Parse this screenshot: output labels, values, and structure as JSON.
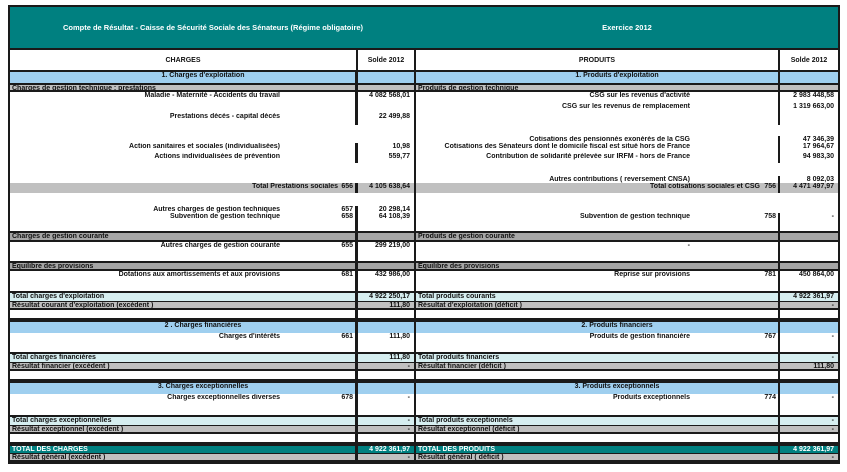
{
  "header": {
    "title_left": "Compte de Résultat - Caisse de Sécurité Sociale des Sénateurs (Régime obligatoire)",
    "title_right": "Exercice 2012"
  },
  "columns": {
    "left": "CHARGES",
    "right": "PRODUITS",
    "left_value": "Solde 2012",
    "right_value": "Solde 2012"
  },
  "colors": {
    "teal": "#008080",
    "section_blue": "#9fcfef",
    "gray": "#c0c0c0",
    "total_cyan": "#d6eef0"
  },
  "rows": [
    {
      "kind": "section",
      "left": {
        "label": "1. Charges d'exploitation"
      },
      "right": {
        "label": "1. Produits d'exploitation"
      }
    },
    {
      "kind": "sub",
      "left": {
        "label": "Charges de gestion technique : prestations"
      },
      "right": {
        "label": "Produits de gestion technique"
      }
    },
    {
      "kind": "item",
      "left": {
        "label": "Maladie - Maternité - Accidents du travail",
        "value": "4 082 568,01"
      },
      "right": {
        "label": "CSG sur les revenus d'activité",
        "value": "2 983 448,58"
      }
    },
    {
      "kind": "item",
      "left": {},
      "right": {
        "label": "CSG sur les revenus de remplacement",
        "value": "1 319 663,00"
      }
    },
    {
      "kind": "item",
      "left": {
        "label": "Prestations décès - capital décès",
        "value": "22 499,88"
      },
      "right": {}
    },
    {
      "kind": "item",
      "left": {},
      "right": {
        "label": "Cotisations des pensionnés exonérés de la CSG",
        "value": "47 346,39"
      }
    },
    {
      "kind": "item",
      "left": {
        "label": "Action sanitaires et sociales (individualisées)",
        "value": "10,98"
      },
      "right": {
        "label": "Cotisations des Sénateurs dont le domicile fiscal est situé hors de France",
        "value": "17 964,67"
      }
    },
    {
      "kind": "item",
      "left": {
        "label": "Actions individualisées de prévention",
        "value": "559,77"
      },
      "right": {
        "label": "Contribution de solidarité prélevée sur IRFM - hors de France",
        "value": "94 983,30"
      }
    },
    {
      "kind": "item",
      "left": {},
      "right": {
        "label": "Autres contributions ( reversement CNSA)",
        "value": "8 092,03"
      }
    },
    {
      "kind": "gtotal",
      "left": {
        "label": "Total Prestations sociales",
        "code": "656",
        "value": "4 105 638,64"
      },
      "right": {
        "label": "Total cotisations sociales et CSG",
        "code": "756",
        "value": "4 471 497,97"
      }
    },
    {
      "kind": "item",
      "left": {
        "label": "Autres charges de gestion techniques",
        "code": "657",
        "value": "20 298,14"
      },
      "right": {}
    },
    {
      "kind": "item",
      "left": {
        "label": "Subvention de gestion technique",
        "code": "658",
        "value": "64 108,39"
      },
      "right": {
        "label": "Subvention de gestion technique",
        "code": "758",
        "value": "-"
      }
    },
    {
      "kind": "sub2",
      "left": {
        "label": "Charges de gestion courante"
      },
      "right": {
        "label": "Produits de gestion courante"
      }
    },
    {
      "kind": "item",
      "left": {
        "label": "Autres charges de gestion courante",
        "code": "655",
        "value": "299 219,00"
      },
      "right": {
        "label": "-"
      }
    },
    {
      "kind": "sub2",
      "left": {
        "label": " Equilibre des provisions"
      },
      "right": {
        "label": " Equilibre des provisions"
      }
    },
    {
      "kind": "item",
      "left": {
        "label": "Dotations aux amortissements et aux provisions",
        "code": "681",
        "value": "432 986,00"
      },
      "right": {
        "label": "Reprise sur provisions",
        "code": "781",
        "value": "450 864,00"
      }
    },
    {
      "kind": "ctotal",
      "left": {
        "label": "Total charges d'exploitation",
        "value": "4 922 250,17"
      },
      "right": {
        "label": "Total produits courants",
        "value": "4 922 361,97"
      }
    },
    {
      "kind": "result",
      "left": {
        "label": "Résultat courant d'exploitation (excédent )",
        "value": "111,80"
      },
      "right": {
        "label": "Résultat d'exploitation (déficit )",
        "value": "-"
      }
    },
    {
      "kind": "blank",
      "left": {},
      "right": {}
    },
    {
      "kind": "section",
      "left": {
        "label": "2 . Charges financières"
      },
      "right": {
        "label": "2. Produits financiers"
      }
    },
    {
      "kind": "item",
      "left": {
        "label": "Charges d'intérêts",
        "code": "661",
        "value": "111,80"
      },
      "right": {
        "label": "Produits de gestion financière",
        "code": "767",
        "value": "-"
      }
    },
    {
      "kind": "ctotal",
      "left": {
        "label": "Total charges financières",
        "value": "111,80"
      },
      "right": {
        "label": "Total produits financiers",
        "value": "-"
      }
    },
    {
      "kind": "result",
      "left": {
        "label": "Résultat financier (excédent )",
        "value": "-"
      },
      "right": {
        "label": "Résultat financier (déficit )",
        "value": "111,80"
      }
    },
    {
      "kind": "blank",
      "left": {},
      "right": {}
    },
    {
      "kind": "section",
      "left": {
        "label": "3. Charges exceptionnelles"
      },
      "right": {
        "label": "3. Produits exceptionnels"
      }
    },
    {
      "kind": "item",
      "left": {
        "label": "Charges exceptionnelles diverses",
        "code": "678",
        "value": "-"
      },
      "right": {
        "label": "Produits exceptionnels",
        "code": "774",
        "value": "-"
      }
    },
    {
      "kind": "ctotal",
      "left": {
        "label": "Total charges exceptionnelles",
        "value": "-"
      },
      "right": {
        "label": "Total produits exceptionnels",
        "value": "-"
      }
    },
    {
      "kind": "result",
      "left": {
        "label": "Résultat exceptionnel (excédent )",
        "value": "-"
      },
      "right": {
        "label": "Résultat exceptionnel (déficit )",
        "value": "-"
      }
    },
    {
      "kind": "blank",
      "left": {},
      "right": {}
    },
    {
      "kind": "grand",
      "left": {
        "label": "TOTAL DES CHARGES",
        "value": "4 922 361,97"
      },
      "right": {
        "label": "TOTAL DES PRODUITS",
        "value": "4 922 361,97"
      }
    },
    {
      "kind": "result",
      "left": {
        "label": "Résultat général (excédent )",
        "value": "-"
      },
      "right": {
        "label": "Résultat général ( déficit )",
        "value": "-"
      }
    }
  ]
}
